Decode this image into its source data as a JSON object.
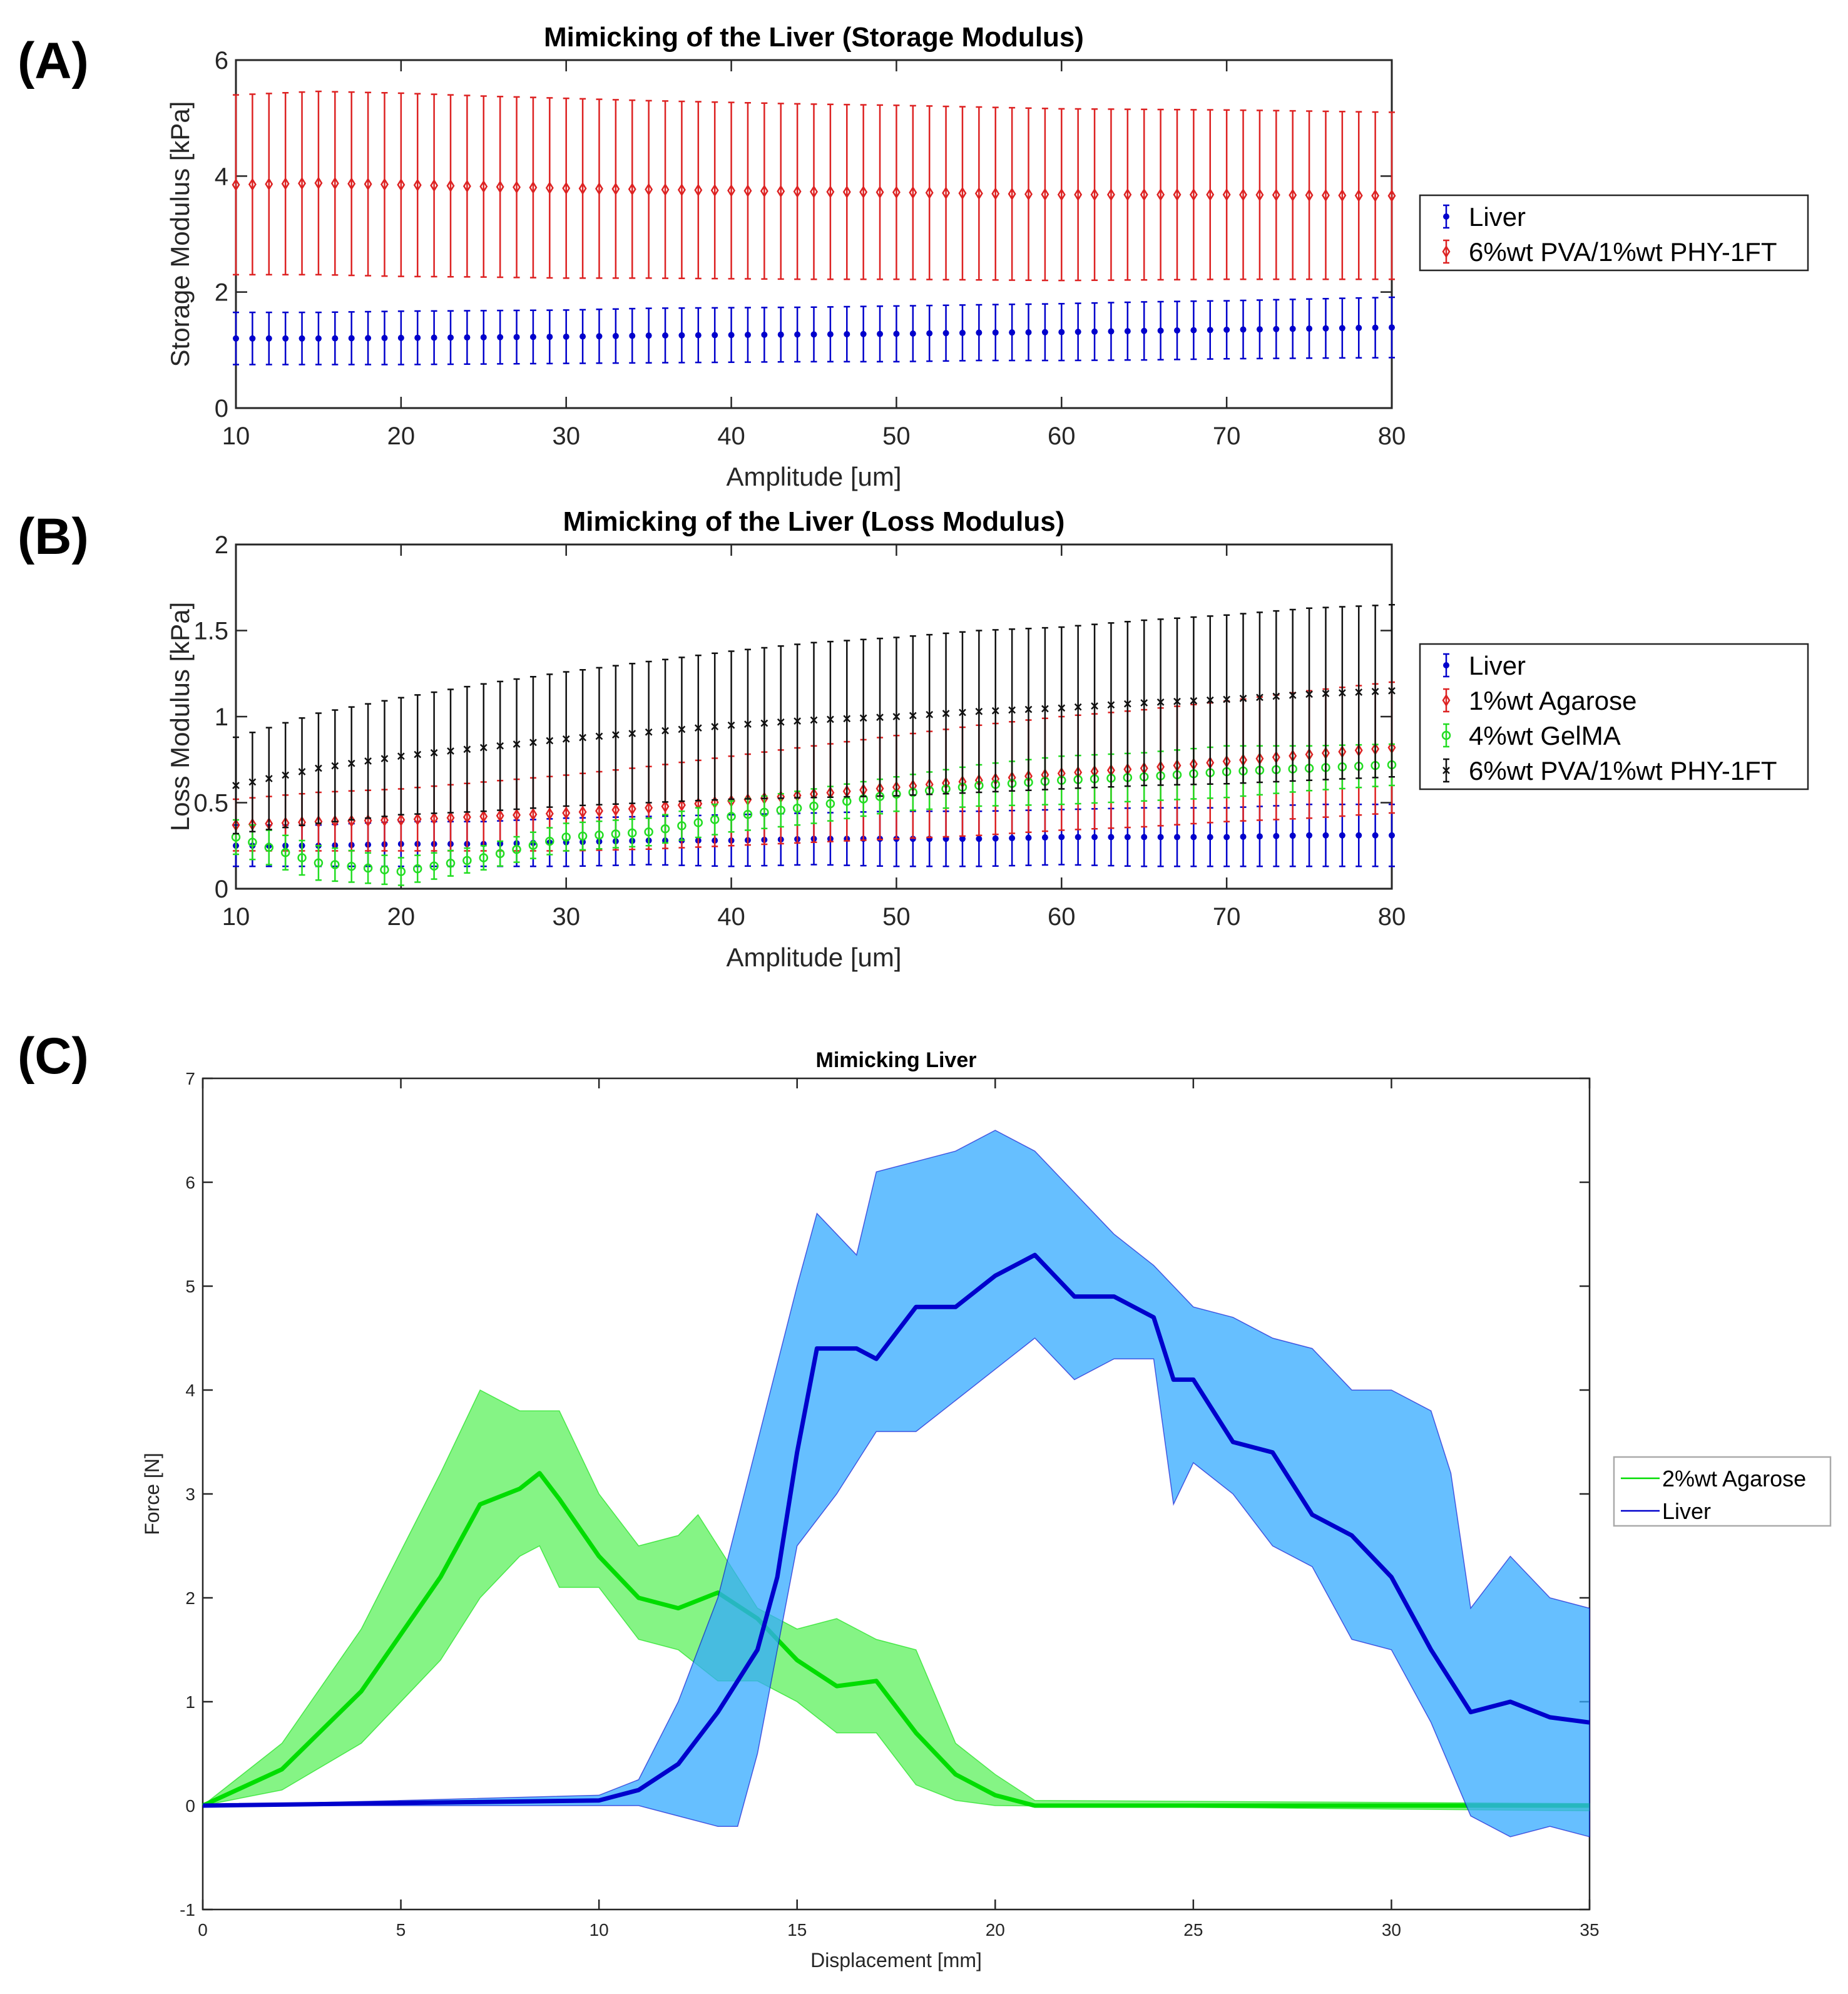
{
  "panel_labels": [
    "(A)",
    "(B)",
    "(C)"
  ],
  "chart_data": [
    {
      "type": "line",
      "title": "Mimicking of the Liver (Storage Modulus)",
      "xlabel": "Amplitude [um]",
      "ylabel": "Storage Modulus [kPa]",
      "xlim": [
        10,
        80
      ],
      "ylim": [
        0,
        6
      ],
      "xticks": [
        "10",
        "20",
        "30",
        "40",
        "50",
        "60",
        "70",
        "80"
      ],
      "yticks": [
        "0",
        "2",
        "4",
        "6"
      ],
      "legend_position": "outside-right",
      "error_bars": true,
      "x_keypoints": [
        10,
        15,
        20,
        25,
        30,
        35,
        40,
        45,
        50,
        55,
        60,
        65,
        70,
        75,
        80
      ],
      "series": [
        {
          "name": "Liver",
          "color": "#0000cc",
          "marker": "dot",
          "mean": [
            1.2,
            1.2,
            1.21,
            1.22,
            1.23,
            1.25,
            1.26,
            1.27,
            1.28,
            1.3,
            1.31,
            1.33,
            1.35,
            1.37,
            1.39
          ],
          "err": [
            0.45,
            0.45,
            0.46,
            0.46,
            0.46,
            0.47,
            0.47,
            0.47,
            0.48,
            0.48,
            0.49,
            0.5,
            0.5,
            0.51,
            0.52
          ]
        },
        {
          "name": "6%wt PVA/1%wt PHY-1FT",
          "color": "#dd2222",
          "marker": "diamond",
          "mean": [
            3.85,
            3.88,
            3.85,
            3.82,
            3.79,
            3.77,
            3.75,
            3.73,
            3.72,
            3.7,
            3.68,
            3.68,
            3.68,
            3.67,
            3.66
          ],
          "err": [
            1.55,
            1.58,
            1.58,
            1.56,
            1.55,
            1.53,
            1.52,
            1.51,
            1.5,
            1.49,
            1.48,
            1.47,
            1.46,
            1.45,
            1.44
          ]
        }
      ]
    },
    {
      "type": "line",
      "title": "Mimicking of the Liver (Loss Modulus)",
      "xlabel": "Amplitude [um]",
      "ylabel": "Loss Modulus [kPa]",
      "xlim": [
        10,
        80
      ],
      "ylim": [
        0,
        2
      ],
      "xticks": [
        "10",
        "20",
        "30",
        "40",
        "50",
        "60",
        "70",
        "80"
      ],
      "yticks": [
        "0",
        "0.5",
        "1",
        "1.5",
        "2"
      ],
      "legend_position": "outside-right",
      "error_bars": true,
      "x_keypoints": [
        10,
        15,
        20,
        25,
        30,
        35,
        40,
        45,
        50,
        55,
        60,
        65,
        70,
        75,
        80
      ],
      "series": [
        {
          "name": "Liver",
          "color": "#0000cc",
          "marker": "dot",
          "mean": [
            0.25,
            0.25,
            0.26,
            0.26,
            0.27,
            0.28,
            0.28,
            0.29,
            0.29,
            0.29,
            0.3,
            0.3,
            0.3,
            0.31,
            0.31
          ],
          "err": [
            0.12,
            0.12,
            0.13,
            0.13,
            0.14,
            0.14,
            0.15,
            0.15,
            0.16,
            0.16,
            0.16,
            0.17,
            0.17,
            0.18,
            0.18
          ]
        },
        {
          "name": "1%wt Agarose",
          "color": "#dd2222",
          "marker": "diamond",
          "mean": [
            0.37,
            0.39,
            0.4,
            0.42,
            0.44,
            0.47,
            0.51,
            0.55,
            0.59,
            0.63,
            0.67,
            0.7,
            0.74,
            0.78,
            0.82
          ],
          "err": [
            0.15,
            0.17,
            0.18,
            0.2,
            0.22,
            0.24,
            0.26,
            0.28,
            0.3,
            0.32,
            0.33,
            0.34,
            0.35,
            0.37,
            0.38
          ]
        },
        {
          "name": "4%wt GelMA",
          "color": "#22dd22",
          "marker": "circle",
          "mean": [
            0.3,
            0.15,
            0.1,
            0.18,
            0.3,
            0.33,
            0.42,
            0.48,
            0.55,
            0.6,
            0.63,
            0.65,
            0.68,
            0.7,
            0.72
          ],
          "err": [
            0.1,
            0.1,
            0.08,
            0.07,
            0.08,
            0.08,
            0.09,
            0.1,
            0.1,
            0.12,
            0.14,
            0.14,
            0.15,
            0.13,
            0.12
          ]
        },
        {
          "name": "6%wt PVA/1%wt PHY-1FT",
          "color": "#111111",
          "marker": "cross",
          "mean": [
            0.6,
            0.7,
            0.77,
            0.82,
            0.87,
            0.91,
            0.95,
            0.98,
            1.0,
            1.03,
            1.05,
            1.08,
            1.1,
            1.13,
            1.15
          ],
          "err": [
            0.28,
            0.32,
            0.34,
            0.37,
            0.39,
            0.41,
            0.43,
            0.45,
            0.46,
            0.47,
            0.47,
            0.48,
            0.49,
            0.5,
            0.5
          ]
        }
      ]
    },
    {
      "type": "area",
      "title": "Mimicking Liver",
      "xlabel": "Displacement [mm]",
      "ylabel": "Force [N]",
      "xlim": [
        0,
        35
      ],
      "ylim": [
        -1,
        7
      ],
      "xticks": [
        "0",
        "5",
        "10",
        "15",
        "20",
        "25",
        "30",
        "35"
      ],
      "yticks": [
        "-1",
        "0",
        "1",
        "2",
        "3",
        "4",
        "5",
        "6",
        "7"
      ],
      "legend_position": "outside-right",
      "series": [
        {
          "name": "2%wt Agarose",
          "color": "#00dd00",
          "band_color": "#5cf05c",
          "mean": [
            [
              0,
              0
            ],
            [
              2,
              0.35
            ],
            [
              4,
              1.1
            ],
            [
              6,
              2.2
            ],
            [
              7,
              2.9
            ],
            [
              8,
              3.05
            ],
            [
              8.5,
              3.2
            ],
            [
              9,
              2.95
            ],
            [
              10,
              2.4
            ],
            [
              11,
              2.0
            ],
            [
              12,
              1.9
            ],
            [
              13,
              2.05
            ],
            [
              14,
              1.8
            ],
            [
              15,
              1.4
            ],
            [
              16,
              1.15
            ],
            [
              17,
              1.2
            ],
            [
              18,
              0.7
            ],
            [
              19,
              0.3
            ],
            [
              20,
              0.1
            ],
            [
              21,
              0
            ],
            [
              35,
              0
            ]
          ],
          "upper": [
            [
              0,
              0
            ],
            [
              2,
              0.6
            ],
            [
              4,
              1.7
            ],
            [
              6,
              3.2
            ],
            [
              7,
              4.0
            ],
            [
              8,
              3.8
            ],
            [
              9,
              3.8
            ],
            [
              10,
              3.0
            ],
            [
              11,
              2.5
            ],
            [
              12,
              2.6
            ],
            [
              12.5,
              2.8
            ],
            [
              13,
              2.5
            ],
            [
              14,
              1.9
            ],
            [
              15,
              1.7
            ],
            [
              16,
              1.8
            ],
            [
              17,
              1.6
            ],
            [
              18,
              1.5
            ],
            [
              19,
              0.6
            ],
            [
              20,
              0.3
            ],
            [
              21,
              0.05
            ],
            [
              35,
              0.02
            ]
          ],
          "lower": [
            [
              0,
              0
            ],
            [
              2,
              0.15
            ],
            [
              4,
              0.6
            ],
            [
              6,
              1.4
            ],
            [
              7,
              2.0
            ],
            [
              8,
              2.4
            ],
            [
              8.5,
              2.5
            ],
            [
              9,
              2.1
            ],
            [
              10,
              2.1
            ],
            [
              11,
              1.6
            ],
            [
              12,
              1.5
            ],
            [
              13,
              1.2
            ],
            [
              14,
              1.2
            ],
            [
              15,
              1.0
            ],
            [
              16,
              0.7
            ],
            [
              17,
              0.7
            ],
            [
              18,
              0.2
            ],
            [
              19,
              0.05
            ],
            [
              20,
              0
            ],
            [
              35,
              -0.05
            ]
          ]
        },
        {
          "name": "Liver",
          "color": "#0000cc",
          "band_color": "#33aaff",
          "mean": [
            [
              0,
              0
            ],
            [
              10,
              0.05
            ],
            [
              11,
              0.15
            ],
            [
              12,
              0.4
            ],
            [
              13,
              0.9
            ],
            [
              14,
              1.5
            ],
            [
              14.5,
              2.2
            ],
            [
              15,
              3.4
            ],
            [
              15.5,
              4.4
            ],
            [
              16.5,
              4.4
            ],
            [
              17,
              4.3
            ],
            [
              18,
              4.8
            ],
            [
              19,
              4.8
            ],
            [
              20,
              5.1
            ],
            [
              21,
              5.3
            ],
            [
              22,
              4.9
            ],
            [
              23,
              4.9
            ],
            [
              24,
              4.7
            ],
            [
              24.5,
              4.1
            ],
            [
              25,
              4.1
            ],
            [
              26,
              3.5
            ],
            [
              27,
              3.4
            ],
            [
              28,
              2.8
            ],
            [
              29,
              2.6
            ],
            [
              30,
              2.2
            ],
            [
              31,
              1.5
            ],
            [
              32,
              0.9
            ],
            [
              33,
              1.0
            ],
            [
              34,
              0.85
            ],
            [
              35,
              0.8
            ]
          ],
          "upper": [
            [
              0,
              0
            ],
            [
              10,
              0.1
            ],
            [
              11,
              0.25
            ],
            [
              12,
              1.0
            ],
            [
              13,
              2.0
            ],
            [
              14,
              3.5
            ],
            [
              15,
              5.0
            ],
            [
              15.5,
              5.7
            ],
            [
              16.5,
              5.3
            ],
            [
              17,
              6.1
            ],
            [
              18,
              6.2
            ],
            [
              19,
              6.3
            ],
            [
              20,
              6.5
            ],
            [
              21,
              6.3
            ],
            [
              22,
              5.9
            ],
            [
              23,
              5.5
            ],
            [
              24,
              5.2
            ],
            [
              25,
              4.8
            ],
            [
              26,
              4.7
            ],
            [
              27,
              4.5
            ],
            [
              28,
              4.4
            ],
            [
              29,
              4.0
            ],
            [
              30,
              4.0
            ],
            [
              31,
              3.8
            ],
            [
              31.5,
              3.2
            ],
            [
              32,
              1.9
            ],
            [
              33,
              2.4
            ],
            [
              34,
              2.0
            ],
            [
              35,
              1.9
            ]
          ],
          "lower": [
            [
              0,
              0
            ],
            [
              10,
              0
            ],
            [
              11,
              0
            ],
            [
              12,
              -0.1
            ],
            [
              13,
              -0.2
            ],
            [
              13.5,
              -0.2
            ],
            [
              14,
              0.5
            ],
            [
              15,
              2.5
            ],
            [
              16,
              3.0
            ],
            [
              17,
              3.6
            ],
            [
              18,
              3.6
            ],
            [
              19,
              3.9
            ],
            [
              20,
              4.2
            ],
            [
              21,
              4.5
            ],
            [
              22,
              4.1
            ],
            [
              23,
              4.3
            ],
            [
              24,
              4.3
            ],
            [
              24.5,
              2.9
            ],
            [
              25,
              3.3
            ],
            [
              26,
              3.0
            ],
            [
              27,
              2.5
            ],
            [
              28,
              2.3
            ],
            [
              29,
              1.6
            ],
            [
              30,
              1.5
            ],
            [
              31,
              0.8
            ],
            [
              32,
              -0.1
            ],
            [
              33,
              -0.3
            ],
            [
              34,
              -0.2
            ],
            [
              35,
              -0.3
            ]
          ]
        }
      ]
    }
  ]
}
